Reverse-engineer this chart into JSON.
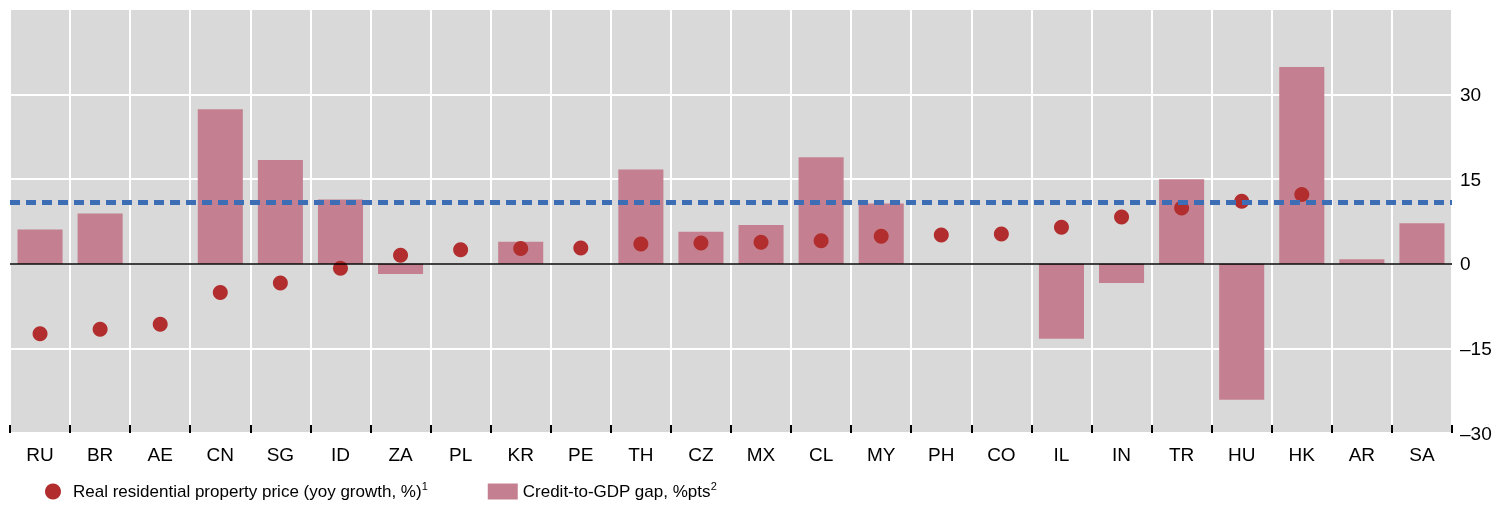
{
  "chart_data": {
    "type": "bar",
    "categories": [
      "RU",
      "BR",
      "AE",
      "CN",
      "SG",
      "ID",
      "ZA",
      "PL",
      "KR",
      "PE",
      "TH",
      "CZ",
      "MX",
      "CL",
      "MY",
      "PH",
      "CO",
      "IL",
      "IN",
      "TR",
      "HU",
      "HK",
      "AR",
      "SA"
    ],
    "series": [
      {
        "name": "Real residential property price (yoy growth, %)$^{1}$",
        "type": "scatter",
        "color": "#b22e2e",
        "values": [
          -12.4,
          -11.6,
          -10.7,
          -5.1,
          -3.4,
          -0.8,
          1.5,
          2.5,
          2.7,
          2.8,
          3.5,
          3.7,
          3.8,
          4.1,
          4.9,
          5.1,
          5.3,
          6.5,
          8.3,
          9.9,
          11.1,
          12.3,
          null,
          null
        ]
      },
      {
        "name": "Credit-to-GDP gap, %pts$^{2}$",
        "color": "#c48090",
        "values": [
          6.1,
          8.9,
          null,
          27.4,
          18.4,
          11.4,
          -1.8,
          null,
          3.9,
          null,
          16.7,
          5.7,
          6.9,
          18.9,
          10.7,
          null,
          null,
          -13.3,
          -3.4,
          15.0,
          -24.1,
          34.9,
          0.8,
          7.2
        ]
      }
    ],
    "ylim": [
      -30,
      45
    ],
    "yticks": [
      {
        "value": -30,
        "label": "–30"
      },
      {
        "value": -15,
        "label": "–15"
      },
      0,
      15,
      30
    ],
    "ref_lines": [
      {
        "axis": "y",
        "value": 0,
        "color": "#000000",
        "line_style": "solid"
      },
      {
        "axis": "y",
        "value": 11,
        "color": "#3d6db5",
        "line_style": "dashed"
      }
    ],
    "grid": true,
    "legend": "bottom",
    "marker": "circle"
  }
}
